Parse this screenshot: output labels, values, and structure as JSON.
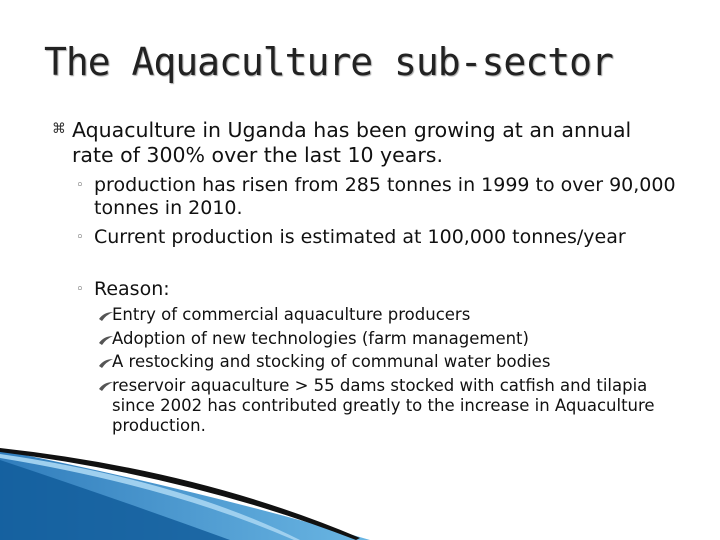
{
  "slide": {
    "title": "The Aquaculture sub-sector",
    "main_point": "Aquaculture in Uganda has been growing at an annual rate of 300% over the last 10 years.",
    "sub_points": [
      "production has risen from 285 tonnes in 1999 to over 90,000 tonnes in 2010.",
      "Current production is estimated at 100,000 tonnes/year",
      "Reason:"
    ],
    "reasons": [
      "Entry of commercial aquaculture producers",
      "Adoption of new technologies (farm management)",
      "A restocking and stocking of communal water bodies",
      "reservoir aquaculture > 55 dams stocked with catfish and tilapia since 2002 has contributed greatly to the increase in Aquaculture production."
    ]
  },
  "colors": {
    "accent_blue": "#1a6fb5",
    "accent_light": "#5aaee0",
    "text": "#111111"
  },
  "icons": {
    "level1": "ribbon-bullet-icon",
    "level2": "circle-bullet-icon",
    "level3": "swoosh-bullet-icon"
  }
}
